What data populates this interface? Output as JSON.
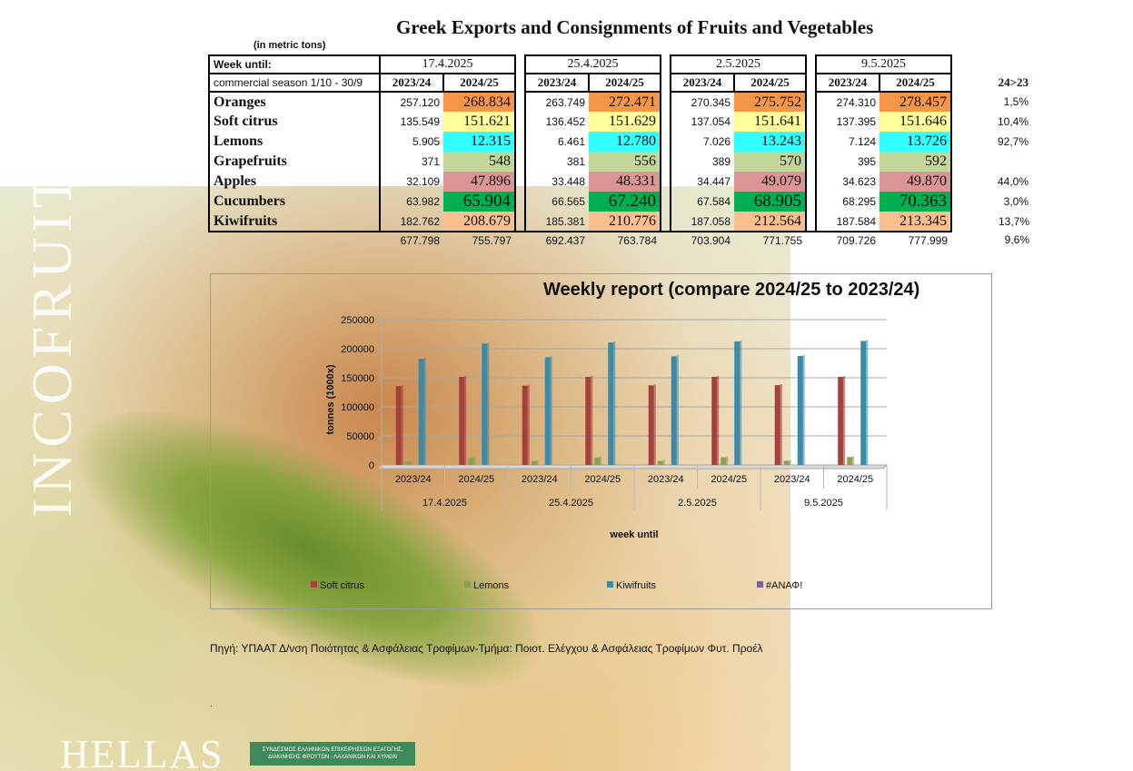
{
  "title": "Greek Exports and Consignments of Fruits and Vegetables",
  "units_note": "(in metric tons)",
  "table": {
    "week_label": "Week until:",
    "season_label": "commercial season 1/10 - 30/9",
    "change_header": "24>23",
    "weeks": [
      "17.4.2025",
      "25.4.2025",
      "2.5.2025",
      "9.5.2025"
    ],
    "seasons": [
      "2023/24",
      "2024/25"
    ],
    "rows": [
      {
        "product": "Oranges",
        "values": [
          "257.120",
          "268.834",
          "263.749",
          "272.471",
          "270.345",
          "275.752",
          "274.310",
          "278.457"
        ],
        "change": "1,5%",
        "color": "#f79646"
      },
      {
        "product": "Soft citrus",
        "values": [
          "135.549",
          "151.621",
          "136.452",
          "151.629",
          "137.054",
          "151.641",
          "137.395",
          "151.646"
        ],
        "change": "10,4%",
        "color": "#ffff99"
      },
      {
        "product": "Lemons",
        "values": [
          "5.905",
          "12.315",
          "6.461",
          "12.780",
          "7.026",
          "13.243",
          "7.124",
          "13.726"
        ],
        "change": "92,7%",
        "color": "#33ffff"
      },
      {
        "product": "Grapefruits",
        "values": [
          "371",
          "548",
          "381",
          "556",
          "389",
          "570",
          "395",
          "592"
        ],
        "change": "",
        "color": "#c4d79b"
      },
      {
        "product": "Apples",
        "values": [
          "32.109",
          "47.896",
          "33.448",
          "48.331",
          "34.447",
          "49.079",
          "34.623",
          "49.870"
        ],
        "change": "44,0%",
        "color": "#da9694"
      },
      {
        "product": "Cucumbers",
        "values": [
          "63.982",
          "65.904",
          "66.565",
          "67.240",
          "67.584",
          "68.905",
          "68.295",
          "70.363"
        ],
        "change": "3,0%",
        "color": "#00b050"
      },
      {
        "product": "Kiwifruits",
        "values": [
          "182.762",
          "208.679",
          "185.381",
          "210.776",
          "187.058",
          "212.564",
          "187.584",
          "213.345"
        ],
        "change": "13,7%",
        "color": "#fabf8f"
      }
    ],
    "totals": [
      "677.798",
      "755.797",
      "692.437",
      "763.784",
      "703.904",
      "771.755",
      "709.726",
      "777.999"
    ],
    "total_change": "9,6%"
  },
  "chart_title": "Weekly report (compare 2024/25 to 2023/24)",
  "chart_data": {
    "type": "bar",
    "title": "Weekly report (compare 2024/25 to 2023/24)",
    "xlabel": "week until",
    "ylabel": "tonnes (1000x)",
    "ylim": [
      0,
      250000
    ],
    "yticks": [
      0,
      50000,
      100000,
      150000,
      200000,
      250000
    ],
    "categories": [
      "2023/24",
      "2024/25",
      "2023/24",
      "2024/25",
      "2023/24",
      "2024/25",
      "2023/24",
      "2024/25"
    ],
    "groups": [
      "17.4.2025",
      "25.4.2025",
      "2.5.2025",
      "9.5.2025"
    ],
    "grid": true,
    "legend_position": "bottom",
    "series": [
      {
        "name": "Soft citrus",
        "color": "#a5403d",
        "values": [
          135549,
          151621,
          136452,
          151629,
          137054,
          151641,
          137395,
          151646
        ]
      },
      {
        "name": "Lemons",
        "color": "#8c9e4f",
        "values": [
          5905,
          12315,
          6461,
          12780,
          7026,
          13243,
          7124,
          13726
        ]
      },
      {
        "name": "Kiwifruits",
        "color": "#3a8aaa",
        "values": [
          182762,
          208679,
          185381,
          210776,
          187058,
          212564,
          187584,
          213345
        ]
      },
      {
        "name": "#ΑΝΑΦ!",
        "color": "#7f60a8",
        "values": [
          0,
          0,
          0,
          0,
          0,
          0,
          0,
          0
        ]
      }
    ]
  },
  "source": "Πηγή: ΥΠΑΑΤ  Δ/νση Ποιότητας & Ασφάλειας Τροφίμων-Τμήμα: Ποιοτ. Ελέγχου & Ασφάλειας Τροφίμων Φυτ. Προέλ",
  "footnote": ".",
  "background": {
    "vertical_text": "INCOFRUIT",
    "brand_text": "HELLAS",
    "logo_text": "ΣΥΝΔΕΣΜΟΣ ΕΛΛΗΝΙΚΩΝ ΕΠΙΧΕΙΡΗΣΕΩΝ ΕΞΑΓΩΓΗΣ, ΔΙΑΚΙΝΗΣΗΣ ΦΡΟΥΤΩΝ - ΛΑΧΑΝΙΚΩΝ ΚΑΙ ΧΥΜΩΝ"
  }
}
